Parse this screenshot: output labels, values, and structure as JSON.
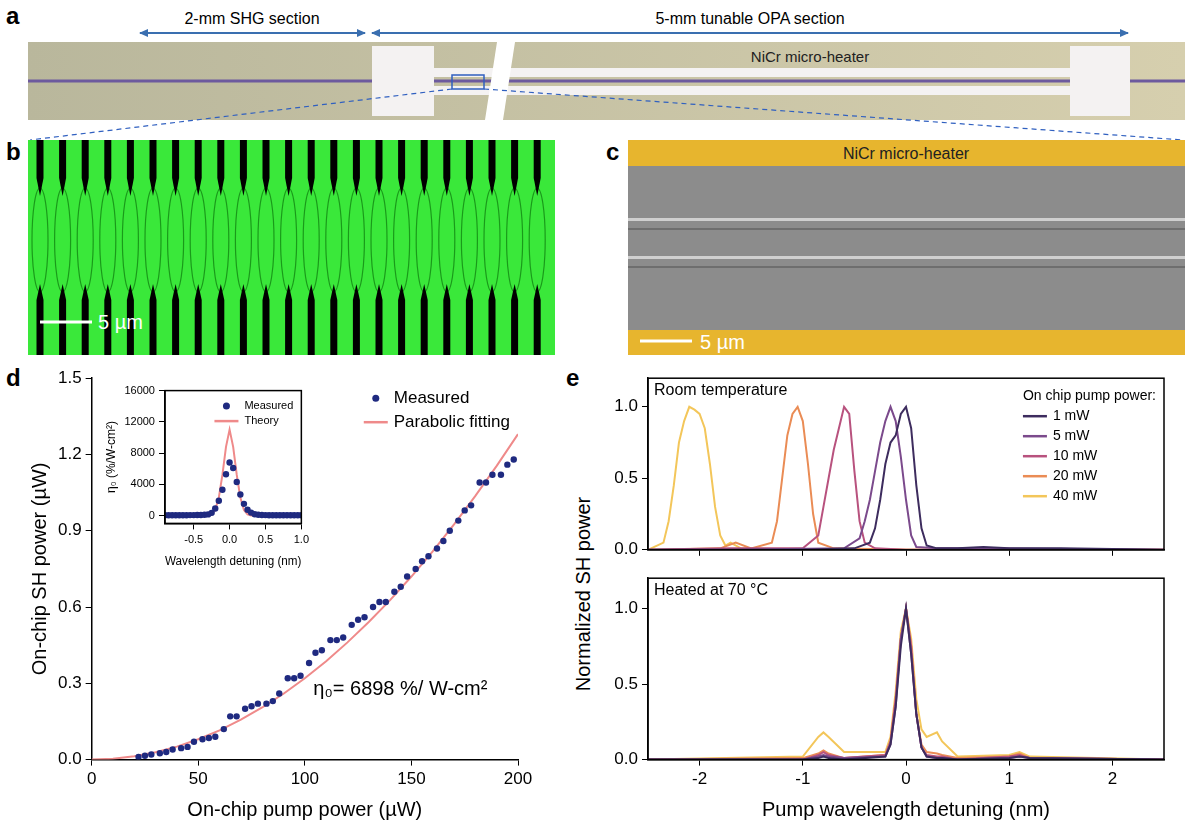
{
  "figure": {
    "a": {
      "panel": "a",
      "section_labels": [
        "2-mm SHG section",
        "5-mm tunable OPA section"
      ],
      "heater_label": "NiCr micro-heater"
    },
    "b": {
      "panel": "b",
      "scale_bar": "5 µm"
    },
    "c": {
      "panel": "c",
      "heater_label": "NiCr micro-heater",
      "scale_bar": "5 µm"
    }
  },
  "chart_data": [
    {
      "panel": "d",
      "type": "scatter",
      "xlabel": "On-chip pump power (µW)",
      "ylabel": "On-chip SH power (µW)",
      "xlim": [
        0,
        200
      ],
      "xticks": [
        0,
        50,
        100,
        150,
        200
      ],
      "ylim": [
        0,
        1.5
      ],
      "yticks": [
        {
          "value": 0,
          "label": "0.0"
        },
        0.3,
        0.6,
        0.9,
        1.2,
        1.5
      ],
      "grid": false,
      "legend": "upper right",
      "annotation": "η₀= 6898 %/ W-cm²",
      "series": [
        {
          "name": "Measured",
          "color": "#1f2a80",
          "marker": "circle",
          "x": [
            22,
            25,
            28,
            32,
            35,
            38,
            42,
            45,
            48,
            52,
            55,
            58,
            62,
            65,
            68,
            72,
            75,
            78,
            82,
            85,
            88,
            92,
            95,
            98,
            102,
            105,
            108,
            112,
            115,
            118,
            122,
            125,
            128,
            132,
            135,
            138,
            142,
            145,
            148,
            152,
            155,
            158,
            162,
            165,
            168,
            172,
            175,
            178,
            182,
            185,
            188,
            192,
            195,
            198
          ],
          "values": [
            0.01,
            0.015,
            0.02,
            0.025,
            0.03,
            0.04,
            0.045,
            0.05,
            0.07,
            0.08,
            0.085,
            0.09,
            0.12,
            0.17,
            0.17,
            0.2,
            0.21,
            0.22,
            0.22,
            0.23,
            0.26,
            0.32,
            0.32,
            0.33,
            0.38,
            0.42,
            0.43,
            0.47,
            0.47,
            0.48,
            0.53,
            0.55,
            0.56,
            0.6,
            0.62,
            0.62,
            0.66,
            0.68,
            0.72,
            0.75,
            0.78,
            0.8,
            0.83,
            0.86,
            0.9,
            0.94,
            0.98,
            1.0,
            1.09,
            1.09,
            1.12,
            1.12,
            1.16,
            1.18
          ]
        },
        {
          "name": "Parabolic fitting",
          "color": "#ef8a8a",
          "type": "line",
          "line_style": "solid",
          "x": [
            0,
            10,
            20,
            30,
            40,
            50,
            60,
            70,
            80,
            90,
            100,
            110,
            120,
            130,
            140,
            150,
            160,
            170,
            180,
            190,
            200
          ],
          "values": [
            0,
            0.003,
            0.013,
            0.029,
            0.051,
            0.08,
            0.115,
            0.157,
            0.205,
            0.259,
            0.32,
            0.387,
            0.461,
            0.541,
            0.627,
            0.72,
            0.819,
            0.925,
            1.037,
            1.155,
            1.28
          ]
        }
      ]
    },
    {
      "type": "scatter",
      "xlabel": "Wavelength detuning (nm)",
      "ylabel": "η₀ (%/W-cm²)",
      "xlim": [
        -0.9,
        1.0
      ],
      "xticks": [
        -0.5,
        {
          "value": 0,
          "label": "0.0"
        },
        0.5,
        {
          "value": 1,
          "label": "1.0"
        }
      ],
      "ylim": [
        -1000,
        16000
      ],
      "yticks": [
        0,
        4000,
        8000,
        12000,
        16000
      ],
      "grid": false,
      "legend": "upper right",
      "series": [
        {
          "name": "Measured",
          "color": "#1f2a80",
          "marker": "circle",
          "x": [
            -0.9,
            -0.85,
            -0.8,
            -0.75,
            -0.7,
            -0.65,
            -0.6,
            -0.55,
            -0.5,
            -0.45,
            -0.4,
            -0.35,
            -0.3,
            -0.25,
            -0.2,
            -0.15,
            -0.1,
            -0.05,
            0,
            0.05,
            0.1,
            0.15,
            0.2,
            0.25,
            0.3,
            0.35,
            0.4,
            0.45,
            0.5,
            0.55,
            0.6,
            0.65,
            0.7,
            0.75,
            0.8,
            0.85,
            0.9,
            0.95,
            1.0
          ],
          "values": [
            50,
            50,
            50,
            50,
            50,
            50,
            50,
            60,
            60,
            70,
            80,
            100,
            150,
            350,
            900,
            1900,
            3300,
            5300,
            6800,
            6100,
            4300,
            2700,
            1500,
            750,
            380,
            180,
            100,
            80,
            60,
            50,
            50,
            50,
            50,
            50,
            50,
            50,
            50,
            50,
            50
          ]
        },
        {
          "name": "Theory",
          "color": "#ef8a8a",
          "type": "line",
          "line_style": "solid",
          "x": [
            -0.9,
            -0.5,
            -0.3,
            -0.25,
            -0.2,
            -0.15,
            -0.1,
            -0.05,
            0,
            0.05,
            0.1,
            0.15,
            0.2,
            0.25,
            0.3,
            0.5,
            1.0
          ],
          "values": [
            0,
            0,
            20,
            150,
            700,
            2300,
            5200,
            8800,
            11000,
            8800,
            5200,
            2300,
            700,
            150,
            20,
            0,
            0
          ]
        }
      ]
    },
    {
      "panel": "e",
      "type": "line",
      "xlabel": "Pump wavelength detuning (nm)",
      "ylabel": "Normalized SH power",
      "xlim": [
        -2.5,
        2.5
      ],
      "xticks": [
        -2,
        -1,
        0,
        1,
        2
      ],
      "grid": false,
      "subplots": [
        {
          "annotation": "Room temperature",
          "ylim": [
            0,
            1.2
          ],
          "yticks": [
            {
              "value": 0,
              "label": "0.0"
            },
            0.5,
            {
              "value": 1,
              "label": "1.0"
            }
          ],
          "tick_labels": "y",
          "legend": "upper right",
          "legend_title": "On chip pump power:",
          "series": [
            {
              "name": "1 mW",
              "color": "#3d2c5e",
              "x": [
                -2.5,
                -1.0,
                -0.5,
                -0.35,
                -0.3,
                -0.25,
                -0.2,
                -0.15,
                -0.1,
                -0.05,
                0,
                0.05,
                0.1,
                0.15,
                0.2,
                0.3,
                0.5,
                0.75,
                1.0,
                1.5,
                2.5
              ],
              "values": [
                0,
                0,
                0.01,
                0.05,
                0.15,
                0.35,
                0.6,
                0.75,
                0.8,
                0.95,
                1.0,
                0.85,
                0.45,
                0.15,
                0.03,
                0.01,
                0.01,
                0.02,
                0.01,
                0.01,
                0
              ]
            },
            {
              "name": "5 mW",
              "color": "#7b4a8c",
              "x": [
                -2.5,
                -1.7,
                -0.6,
                -0.45,
                -0.4,
                -0.35,
                -0.3,
                -0.25,
                -0.2,
                -0.15,
                -0.1,
                -0.05,
                0,
                0.05,
                0.1,
                0.3,
                0.7,
                2.5
              ],
              "values": [
                0,
                0,
                0.01,
                0.08,
                0.2,
                0.35,
                0.55,
                0.75,
                0.9,
                1.0,
                0.9,
                0.65,
                0.35,
                0.1,
                0.02,
                0.01,
                0.01,
                0
              ]
            },
            {
              "name": "10 mW",
              "color": "#b8527e",
              "x": [
                -2.5,
                -1.7,
                -1.0,
                -0.85,
                -0.8,
                -0.75,
                -0.7,
                -0.65,
                -0.6,
                -0.55,
                -0.5,
                -0.45,
                -0.4,
                -0.3,
                0,
                2.5
              ],
              "values": [
                0,
                0.01,
                0.01,
                0.1,
                0.3,
                0.5,
                0.7,
                0.85,
                1.0,
                0.95,
                0.55,
                0.2,
                0.05,
                0.01,
                0,
                0
              ]
            },
            {
              "name": "20 mW",
              "color": "#ea8c55",
              "x": [
                -2.5,
                -1.8,
                -1.65,
                -1.5,
                -1.3,
                -1.25,
                -1.2,
                -1.15,
                -1.1,
                -1.05,
                -1.0,
                -0.95,
                -0.9,
                -0.85,
                -0.7,
                0,
                2.5
              ],
              "values": [
                0,
                0.01,
                0.05,
                0.01,
                0.05,
                0.2,
                0.5,
                0.8,
                0.95,
                1.0,
                0.9,
                0.6,
                0.25,
                0.05,
                0.01,
                0,
                0
              ]
            },
            {
              "name": "40 mW",
              "color": "#f3c65a",
              "x": [
                -2.5,
                -2.35,
                -2.3,
                -2.25,
                -2.2,
                -2.15,
                -2.1,
                -2.05,
                -2.0,
                -1.95,
                -1.9,
                -1.85,
                -1.8,
                -1.75,
                -1.7,
                -1.6,
                -1.0,
                2.5
              ],
              "values": [
                0,
                0.05,
                0.2,
                0.45,
                0.75,
                0.9,
                1.0,
                0.98,
                0.95,
                0.85,
                0.6,
                0.3,
                0.1,
                0.03,
                0.05,
                0.01,
                0,
                0
              ]
            }
          ]
        },
        {
          "annotation": "Heated at 70 °C",
          "ylim": [
            0,
            1.2
          ],
          "yticks": [
            {
              "value": 0,
              "label": "0.0"
            },
            0.5,
            {
              "value": 1,
              "label": "1.0"
            }
          ],
          "series": [
            {
              "name": "1 mW",
              "color": "#3d2c5e",
              "x": [
                -2.5,
                -1.0,
                -0.85,
                -0.8,
                -0.75,
                -0.6,
                -0.2,
                -0.15,
                -0.1,
                -0.05,
                0,
                0.05,
                0.1,
                0.15,
                0.2,
                0.3,
                0.35,
                0.5,
                1.0,
                1.1,
                1.2,
                2.5
              ],
              "values": [
                0,
                0,
                0.01,
                0.02,
                0.01,
                0,
                0.02,
                0.1,
                0.35,
                0.75,
                1.0,
                0.7,
                0.3,
                0.08,
                0.02,
                0.01,
                0.01,
                0,
                0.01,
                0.02,
                0.01,
                0
              ]
            },
            {
              "name": "5 mW",
              "color": "#7b4a8c",
              "x": [
                -2.5,
                -1.0,
                -0.85,
                -0.8,
                -0.75,
                -0.6,
                -0.2,
                -0.15,
                -0.1,
                -0.05,
                0,
                0.05,
                0.1,
                0.15,
                0.2,
                0.3,
                0.35,
                0.5,
                1.0,
                1.1,
                1.2,
                2.5
              ],
              "values": [
                0,
                0,
                0.02,
                0.03,
                0.02,
                0.01,
                0.02,
                0.1,
                0.35,
                0.8,
                1.0,
                0.7,
                0.3,
                0.08,
                0.02,
                0.01,
                0.01,
                0,
                0.01,
                0.02,
                0.01,
                0
              ]
            },
            {
              "name": "10 mW",
              "color": "#b8527e",
              "x": [
                -2.5,
                -1.0,
                -0.85,
                -0.8,
                -0.75,
                -0.6,
                -0.2,
                -0.15,
                -0.1,
                -0.05,
                0,
                0.05,
                0.1,
                0.15,
                0.2,
                0.3,
                0.35,
                0.5,
                1.0,
                1.1,
                1.2,
                2.5
              ],
              "values": [
                0,
                0,
                0.03,
                0.05,
                0.03,
                0.01,
                0.03,
                0.12,
                0.4,
                0.8,
                1.0,
                0.75,
                0.3,
                0.08,
                0.03,
                0.02,
                0.02,
                0,
                0.02,
                0.03,
                0.01,
                0
              ]
            },
            {
              "name": "20 mW",
              "color": "#ea8c55",
              "x": [
                -2.5,
                -1.0,
                -0.85,
                -0.8,
                -0.75,
                -0.6,
                -0.2,
                -0.15,
                -0.1,
                -0.05,
                0,
                0.05,
                0.1,
                0.15,
                0.2,
                0.3,
                0.35,
                0.5,
                1.0,
                1.1,
                1.2,
                2.5
              ],
              "values": [
                0,
                0.01,
                0.04,
                0.06,
                0.04,
                0.01,
                0.03,
                0.12,
                0.4,
                0.8,
                1.0,
                0.75,
                0.3,
                0.1,
                0.05,
                0.04,
                0.03,
                0.01,
                0.02,
                0.04,
                0.01,
                0
              ]
            },
            {
              "name": "40 mW",
              "color": "#f3c65a",
              "x": [
                -2.5,
                -1.0,
                -0.85,
                -0.8,
                -0.75,
                -0.6,
                -0.2,
                -0.15,
                -0.1,
                -0.05,
                0,
                0.05,
                0.1,
                0.15,
                0.2,
                0.3,
                0.35,
                0.5,
                1.0,
                1.1,
                1.2,
                2.5
              ],
              "values": [
                0,
                0.02,
                0.15,
                0.18,
                0.15,
                0.05,
                0.05,
                0.15,
                0.45,
                0.85,
                1.0,
                0.8,
                0.4,
                0.2,
                0.15,
                0.18,
                0.12,
                0.02,
                0.03,
                0.05,
                0.02,
                0
              ]
            }
          ]
        }
      ]
    }
  ]
}
